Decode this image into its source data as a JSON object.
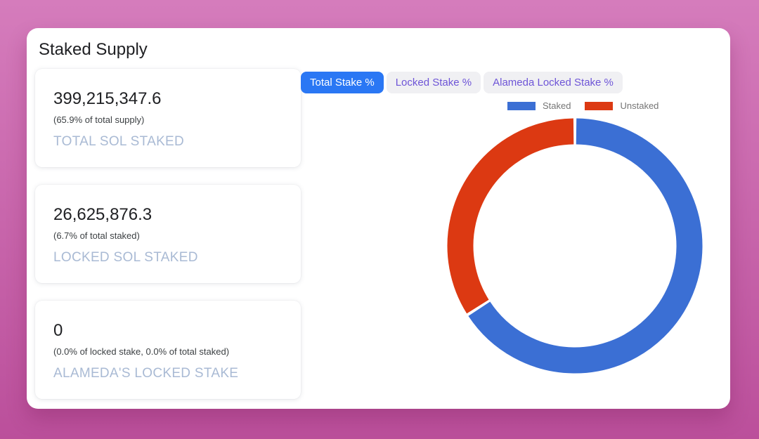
{
  "panel": {
    "title": "Staked Supply"
  },
  "stats": [
    {
      "value": "399,215,347.6",
      "note": "(65.9% of total supply)",
      "label": "TOTAL SOL STAKED"
    },
    {
      "value": "26,625,876.3",
      "note": "(6.7% of total staked)",
      "label": "LOCKED SOL STAKED"
    },
    {
      "value": "0",
      "note": "(0.0% of locked stake, 0.0% of total staked)",
      "label": "ALAMEDA'S LOCKED STAKE"
    }
  ],
  "tabs": {
    "items": [
      {
        "label": "Total Stake %",
        "active": true
      },
      {
        "label": "Locked Stake %",
        "active": false
      },
      {
        "label": "Alameda Locked Stake %",
        "active": false
      }
    ]
  },
  "chart_data": {
    "type": "pie",
    "donut": true,
    "title": "",
    "labels": [
      "Staked",
      "Unstaked"
    ],
    "values": [
      65.9,
      34.1
    ],
    "colors": [
      "#3b6fd4",
      "#dc3912"
    ],
    "legend_position": "top",
    "start_angle_deg": 0,
    "direction": "clockwise"
  },
  "colors": {
    "background_top": "#d57cbc",
    "background_bottom": "#bb4f9b",
    "panel_bg": "#ffffff",
    "tab_active_bg": "#2a77f4",
    "tab_active_text": "#ffffff",
    "tab_inactive_bg": "#f0f0f3",
    "tab_inactive_text": "#6e55d7",
    "stat_label": "#a9bad4",
    "legend_text": "#757575"
  }
}
